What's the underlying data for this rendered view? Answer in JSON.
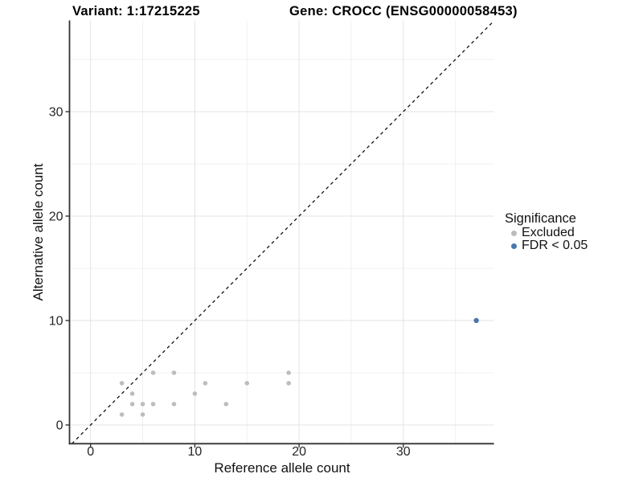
{
  "titles": {
    "variant": "Variant: 1:17215225",
    "gene": "Gene: CROCC (ENSG00000058453)"
  },
  "chart_data": {
    "type": "scatter",
    "xlabel": "Reference allele count",
    "ylabel": "Alternative allele count",
    "xlim": [
      -2,
      38.7
    ],
    "ylim": [
      -1.8,
      38.8
    ],
    "x_ticks": [
      0,
      10,
      20,
      30
    ],
    "y_ticks": [
      0,
      10,
      20,
      30
    ],
    "minor_ticks": [
      5,
      15,
      25,
      35
    ],
    "grid": true,
    "identity_line": {
      "style": "dashed",
      "color": "#111111",
      "from": [
        -1.8,
        -1.8
      ],
      "to": [
        38.7,
        38.7
      ]
    },
    "series": [
      {
        "name": "Excluded",
        "color": "#bdbdbd",
        "marker_r": 2.8,
        "points": [
          [
            3,
            1
          ],
          [
            3,
            4
          ],
          [
            4,
            2
          ],
          [
            4,
            3
          ],
          [
            5,
            1
          ],
          [
            5,
            2
          ],
          [
            6,
            2
          ],
          [
            6,
            5
          ],
          [
            8,
            2
          ],
          [
            8,
            5
          ],
          [
            10,
            3
          ],
          [
            11,
            4
          ],
          [
            13,
            2
          ],
          [
            15,
            4
          ],
          [
            19,
            4
          ],
          [
            19,
            5
          ]
        ]
      },
      {
        "name": "FDR < 0.05",
        "color": "#4878ac",
        "marker_r": 3.2,
        "points": [
          [
            37,
            10
          ]
        ]
      }
    ],
    "legend": {
      "title": "Significance",
      "position": "right",
      "entries": [
        {
          "label": "Excluded",
          "color": "#bdbdbd"
        },
        {
          "label": "FDR < 0.05",
          "color": "#4878ac"
        }
      ]
    }
  },
  "colors": {
    "grid_major": "#e3e3e3",
    "grid_minor": "#f0f0f0",
    "axis_line": "#333333",
    "tick_text": "#262626",
    "background": "#ffffff"
  }
}
